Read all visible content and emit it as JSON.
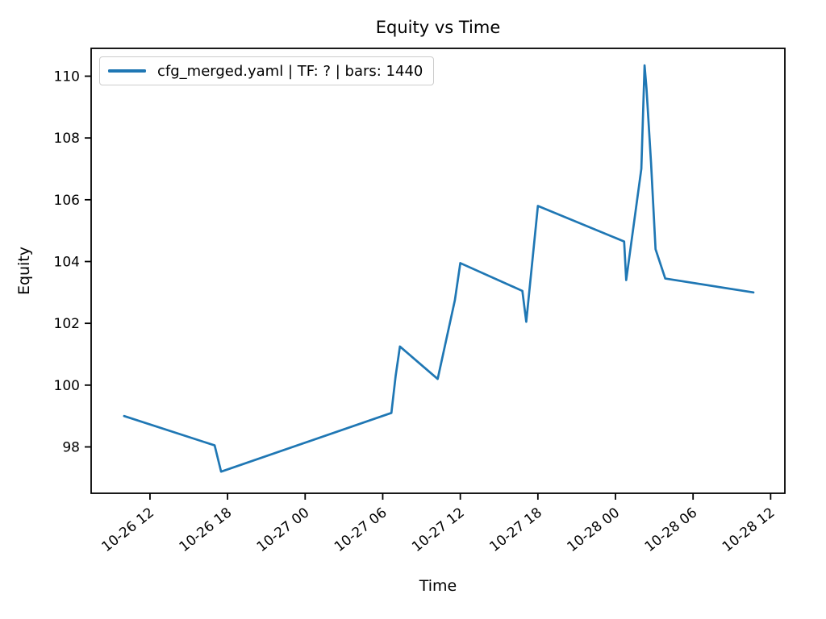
{
  "figure": {
    "title": "Equity vs Time",
    "xlabel": "Time",
    "ylabel": "Equity"
  },
  "legend": {
    "entry": "cfg_merged.yaml | TF: ? | bars: 1440"
  },
  "colors": {
    "line": "#1f77b4",
    "spine": "#000000",
    "text": "#000000",
    "background": "#ffffff",
    "legend_border": "#cccccc"
  },
  "chart_data": {
    "type": "line",
    "title": "Equity vs Time",
    "xlabel": "Time",
    "ylabel": "Equity",
    "grid": false,
    "legend_position": "upper left",
    "legend_entries": [
      "cfg_merged.yaml | TF: ? | bars: 1440"
    ],
    "x_unit": "hours since 10-26 00:00 (month-day hour labels shown on axis)",
    "xlim_hours": [
      7.45,
      61.1
    ],
    "ylim": [
      96.5,
      110.9
    ],
    "y_ticks": [
      98,
      100,
      102,
      104,
      106,
      108,
      110
    ],
    "x_ticks": [
      {
        "hours": 12,
        "label": "10-26 12"
      },
      {
        "hours": 18,
        "label": "10-26 18"
      },
      {
        "hours": 24,
        "label": "10-27 00"
      },
      {
        "hours": 30,
        "label": "10-27 06"
      },
      {
        "hours": 36,
        "label": "10-27 12"
      },
      {
        "hours": 42,
        "label": "10-27 18"
      },
      {
        "hours": 48,
        "label": "10-28 00"
      },
      {
        "hours": 54,
        "label": "10-28 06"
      },
      {
        "hours": 60,
        "label": "10-28 12"
      }
    ],
    "series": [
      {
        "name": "cfg_merged.yaml | TF: ? | bars: 1440",
        "color": "#1f77b4",
        "points": [
          {
            "time": "10-26 10:00",
            "hours": 10.0,
            "equity": 99.0
          },
          {
            "time": "10-26 17:00",
            "hours": 17.0,
            "equity": 98.05
          },
          {
            "time": "10-26 17:30",
            "hours": 17.5,
            "equity": 97.2
          },
          {
            "time": "10-27 06:40",
            "hours": 30.67,
            "equity": 99.1
          },
          {
            "time": "10-27 07:00",
            "hours": 31.0,
            "equity": 100.3
          },
          {
            "time": "10-27 07:20",
            "hours": 31.33,
            "equity": 101.25
          },
          {
            "time": "10-27 10:15",
            "hours": 34.25,
            "equity": 100.2
          },
          {
            "time": "10-27 11:35",
            "hours": 35.58,
            "equity": 102.75
          },
          {
            "time": "10-27 12:00",
            "hours": 36.0,
            "equity": 103.95
          },
          {
            "time": "10-27 16:48",
            "hours": 40.8,
            "equity": 103.05
          },
          {
            "time": "10-27 17:06",
            "hours": 41.1,
            "equity": 102.05
          },
          {
            "time": "10-27 18:00",
            "hours": 42.0,
            "equity": 105.8
          },
          {
            "time": "10-28 00:40",
            "hours": 48.67,
            "equity": 104.65
          },
          {
            "time": "10-28 00:50",
            "hours": 48.83,
            "equity": 103.4
          },
          {
            "time": "10-28 02:00",
            "hours": 50.0,
            "equity": 107.0
          },
          {
            "time": "10-28 02:15",
            "hours": 50.25,
            "equity": 110.35
          },
          {
            "time": "10-28 02:24",
            "hours": 50.4,
            "equity": 109.6
          },
          {
            "time": "10-28 02:45",
            "hours": 50.75,
            "equity": 107.2
          },
          {
            "time": "10-28 03:06",
            "hours": 51.1,
            "equity": 104.4
          },
          {
            "time": "10-28 03:51",
            "hours": 51.85,
            "equity": 103.45
          },
          {
            "time": "10-28 10:40",
            "hours": 58.67,
            "equity": 103.0
          }
        ]
      }
    ]
  }
}
